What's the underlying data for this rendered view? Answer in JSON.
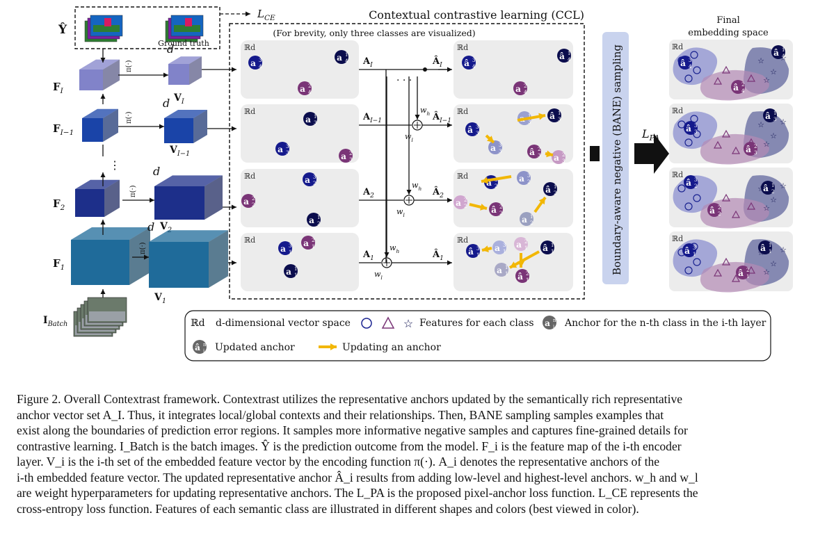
{
  "figure": {
    "loss_ce": "L_CE",
    "ccl_title": "Contextual contrastive learning (CCL)",
    "brevity_note": "(For brevity, only three classes are visualized)",
    "ground_truth_label": "Ground truth",
    "y_hat_label": "Ŷ",
    "batch_label": "I_Batch",
    "dim_label": "d",
    "pi_label": "π(·)",
    "feature_labels": [
      "F_I",
      "F_{I−1}",
      "F_2",
      "F_1"
    ],
    "embed_labels": [
      "V_I",
      "V_{I−1}",
      "V_2",
      "V_1"
    ],
    "anchor_labels": [
      "A_I",
      "A_{I−1}",
      "A_2",
      "A_1"
    ],
    "updated_anchor_labels": [
      "Â_I",
      "Â_{I−1}",
      "Â_2",
      "Â_1"
    ],
    "space_label": "ℝd",
    "wh_label": "w_h",
    "wl_label": "w_l",
    "bane_label": "Boundary-aware negative (BANE) sampling",
    "loss_pa": "L_PA",
    "final_title": "Final",
    "final_subtitle": "embedding space",
    "colors": {
      "class1": "#0b0d4d",
      "class3": "#151a8c",
      "class2": "#7a3577",
      "block_top": "#8183c9",
      "block_mid": "#1a44a8",
      "block_bot": "#1f6b9a",
      "bane_fill": "#c9d3ee",
      "panel": "#ececec",
      "arrow": "#f2b705"
    }
  },
  "legend": {
    "space": "d-dimensional vector space",
    "features": "Features for each class",
    "anchor": "Anchor for the n-th class in the i-th layer",
    "updated": "Updated anchor",
    "updating": "Updating an anchor"
  },
  "caption": [
    "Figure 2. Overall Contextrast framework. Contextrast utilizes the representative anchors updated by the semantically rich representative",
    "anchor vector set A_I. Thus, it integrates local/global contexts and their relationships. Then, BANE sampling samples examples that",
    "exist along the boundaries of prediction error regions. It samples more informative negative samples and captures fine-grained details for",
    "contrastive learning. I_Batch is the batch images. Ŷ is the prediction outcome from the model. F_i is the feature map of the i-th encoder",
    "layer. V_i is the i-th set of the embedded feature vector by the encoding function π(·). A_i denotes the representative anchors of the",
    "i-th embedded feature vector. The updated representative anchor Â_i results from adding low-level and highest-level anchors. w_h and w_l",
    "are weight hyperparameters for updating representative anchors. The L_PA is the proposed pixel-anchor loss function. L_CE represents the",
    "cross-entropy loss function. Features of each semantic class are illustrated in different shapes and colors (best viewed in color)."
  ]
}
